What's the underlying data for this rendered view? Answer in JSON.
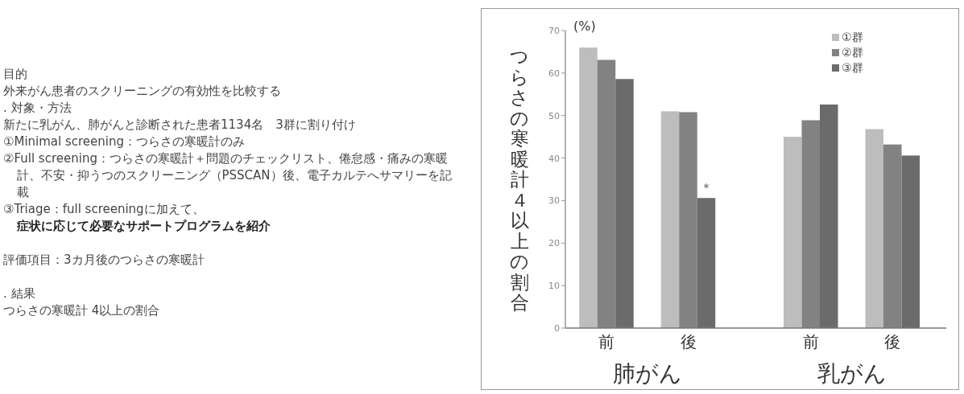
{
  "chart_data": {
    "type": "bar",
    "categories": [
      "前",
      "後",
      "前",
      "後"
    ],
    "ylabel": "つらさの寒暖計４以上の割合",
    "ylim": [
      0,
      70
    ],
    "yticks": [
      0,
      10,
      20,
      30,
      40,
      50,
      60,
      70
    ],
    "legend": "top right",
    "series": [
      {
        "name": "①群",
        "color": "#bdbdbd",
        "values": [
          66,
          51,
          45,
          46.8
        ]
      },
      {
        "name": "②群",
        "color": "#828282",
        "values": [
          63.1,
          50.8,
          48.9,
          43.2
        ]
      },
      {
        "name": "③群",
        "color": "#6b6b6b",
        "values": [
          58.6,
          30.6,
          52.6,
          40.6
        ]
      }
    ],
    "annotations": [
      "(%)",
      {
        "text": "*",
        "x": "後",
        "y": 33
      },
      "肺がん",
      "乳がん",
      "目的",
      "外来がん患者のスクリーニングの有効性を比較する",
      ". 対象・方法",
      "新たに乳がん、肺がんと診断された患者1134名　3群に割り付け",
      "①Minimal screening：つらさの寒暖計のみ",
      "②Full screening：つらさの寒暖計＋問題のチェックリスト、倦怠感・痛みの寒暖計、不安・抑うつのスクリーニング（PSSCAN）後、電子カルテへサマリーを記載",
      "③Triage：full screeningに加えて、**症状に応じて必要なサポートプログラムを紹介**",
      "評価項目：3カ月後のつらさの寒暖計",
      ". 結果",
      "つらさの寒暖計 4以上の割合"
    ]
  }
}
